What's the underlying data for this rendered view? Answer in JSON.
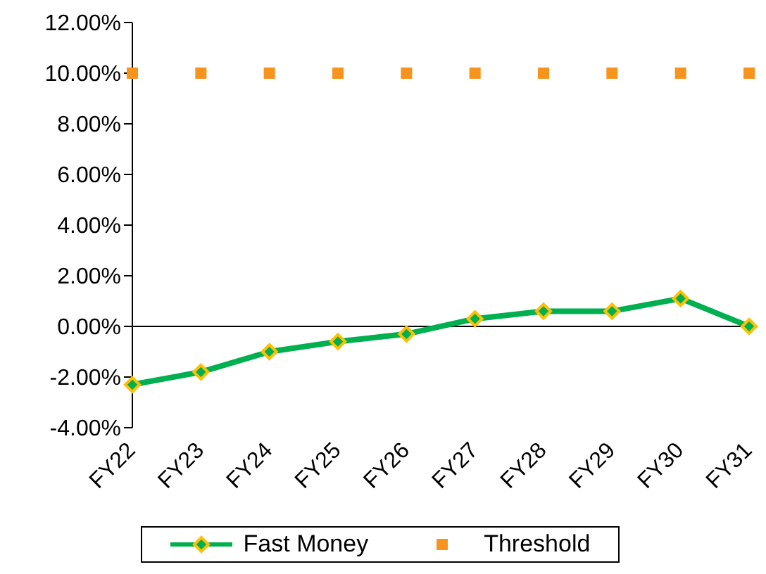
{
  "chart_data": {
    "type": "line",
    "categories": [
      "FY22",
      "FY23",
      "FY24",
      "FY25",
      "FY26",
      "FY27",
      "FY28",
      "FY29",
      "FY30",
      "FY31"
    ],
    "series": [
      {
        "name": "Fast Money",
        "color": "#00b050",
        "marker": "diamond",
        "values": [
          -2.3,
          -1.8,
          -1.0,
          -0.6,
          -0.3,
          0.3,
          0.6,
          0.6,
          1.1,
          0.0
        ]
      },
      {
        "name": "Threshold",
        "type": "scatter",
        "color": "#f7941d",
        "marker": "square",
        "values": [
          10,
          10,
          10,
          10,
          10,
          10,
          10,
          10,
          10,
          10
        ]
      }
    ],
    "ylim": [
      -4,
      12
    ],
    "yticks": [
      {
        "value": -4,
        "label": "-4.00%"
      },
      {
        "value": -2,
        "label": "-2.00%"
      },
      {
        "value": 0,
        "label": "0.00%"
      },
      {
        "value": 2,
        "label": "2.00%"
      },
      {
        "value": 4,
        "label": "4.00%"
      },
      {
        "value": 6,
        "label": "6.00%"
      },
      {
        "value": 8,
        "label": "8.00%"
      },
      {
        "value": 10,
        "label": "10.00%"
      },
      {
        "value": 12,
        "label": "12.00%"
      }
    ],
    "ref_lines": [
      {
        "axis": "y",
        "value": 0,
        "color": "#000000"
      }
    ],
    "legend": "bottom"
  }
}
